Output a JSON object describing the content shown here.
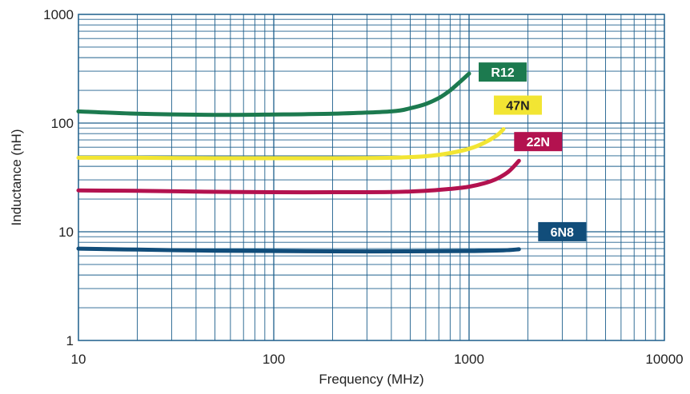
{
  "chart_data": {
    "type": "line",
    "title": "",
    "xlabel": "Frequency  (MHz)",
    "ylabel": "Inductance  (nH)",
    "x_scale": "log",
    "y_scale": "log",
    "xlim": [
      10,
      10000
    ],
    "ylim": [
      1,
      1000
    ],
    "x_ticks": [
      "10",
      "100",
      "1000",
      "10000"
    ],
    "y_ticks": [
      "1",
      "10",
      "100",
      "1000"
    ],
    "grid": true,
    "colors": {
      "grid": "#1d5f8c",
      "frame": "#1d5f8c",
      "R12": "#1c7a4f",
      "47N": "#f2e533",
      "22N": "#b3124f",
      "6N8": "#114d7a"
    },
    "series": [
      {
        "name": "R12",
        "label_text_color": "#ffffff",
        "x": [
          10,
          20,
          50,
          100,
          200,
          400,
          500,
          600,
          700,
          800,
          900,
          1000
        ],
        "y": [
          128,
          122,
          119,
          120,
          122,
          128,
          137,
          150,
          170,
          200,
          240,
          285
        ]
      },
      {
        "name": "47N",
        "label_text_color": "#222222",
        "x": [
          10,
          20,
          50,
          100,
          200,
          400,
          600,
          800,
          1000,
          1200,
          1400,
          1500
        ],
        "y": [
          48,
          48,
          47.5,
          47.5,
          47.5,
          48,
          49.5,
          53,
          58,
          66,
          78,
          88
        ]
      },
      {
        "name": "22N",
        "label_text_color": "#ffffff",
        "x": [
          10,
          20,
          50,
          100,
          200,
          400,
          600,
          800,
          1000,
          1200,
          1400,
          1600,
          1800
        ],
        "y": [
          24,
          23.8,
          23.3,
          23.1,
          23.1,
          23.2,
          23.8,
          24.8,
          26,
          28,
          31,
          36,
          45
        ]
      },
      {
        "name": "6N8",
        "label_text_color": "#ffffff",
        "x": [
          10,
          20,
          50,
          100,
          200,
          500,
          1000,
          1500,
          1800
        ],
        "y": [
          7,
          6.85,
          6.7,
          6.65,
          6.6,
          6.6,
          6.65,
          6.75,
          6.9
        ]
      }
    ]
  }
}
